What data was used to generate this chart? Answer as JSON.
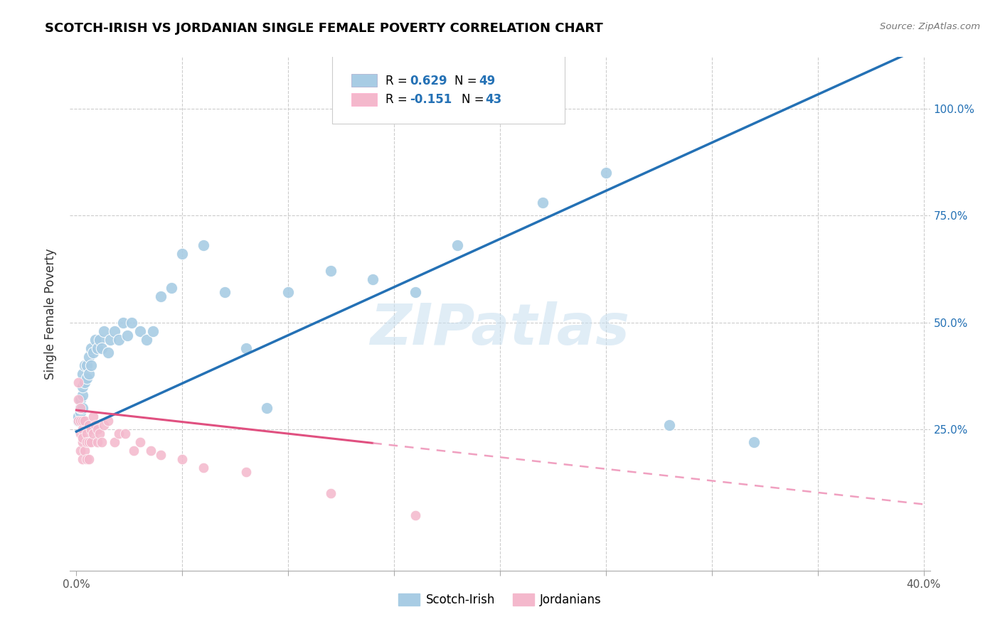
{
  "title": "SCOTCH-IRISH VS JORDANIAN SINGLE FEMALE POVERTY CORRELATION CHART",
  "source": "Source: ZipAtlas.com",
  "ylabel": "Single Female Poverty",
  "legend_scotch_irish": "Scotch-Irish",
  "legend_jordanians": "Jordanians",
  "R_scotch": 0.629,
  "N_scotch": 49,
  "R_jordan": -0.151,
  "N_jordan": 43,
  "scotch_color": "#a8cce4",
  "jordan_color": "#f4b8cc",
  "scotch_line_color": "#2471b5",
  "jordan_line_color": "#e05080",
  "jordan_dashed_color": "#f0a0c0",
  "watermark": "ZIPatlas",
  "scotch_x": [
    0.001,
    0.001,
    0.002,
    0.002,
    0.002,
    0.003,
    0.003,
    0.003,
    0.003,
    0.004,
    0.004,
    0.005,
    0.005,
    0.006,
    0.006,
    0.007,
    0.007,
    0.008,
    0.009,
    0.01,
    0.011,
    0.012,
    0.013,
    0.015,
    0.016,
    0.018,
    0.02,
    0.022,
    0.024,
    0.026,
    0.03,
    0.033,
    0.036,
    0.04,
    0.045,
    0.05,
    0.06,
    0.07,
    0.08,
    0.09,
    0.1,
    0.12,
    0.14,
    0.16,
    0.18,
    0.22,
    0.25,
    0.28,
    0.32
  ],
  "scotch_y": [
    0.27,
    0.28,
    0.29,
    0.3,
    0.32,
    0.3,
    0.33,
    0.35,
    0.38,
    0.36,
    0.4,
    0.37,
    0.4,
    0.38,
    0.42,
    0.4,
    0.44,
    0.43,
    0.46,
    0.44,
    0.46,
    0.44,
    0.48,
    0.43,
    0.46,
    0.48,
    0.46,
    0.5,
    0.47,
    0.5,
    0.48,
    0.46,
    0.48,
    0.56,
    0.58,
    0.66,
    0.68,
    0.57,
    0.44,
    0.3,
    0.57,
    0.62,
    0.6,
    0.57,
    0.68,
    0.78,
    0.85,
    0.26,
    0.22
  ],
  "jordan_x": [
    0.001,
    0.001,
    0.001,
    0.002,
    0.002,
    0.002,
    0.002,
    0.003,
    0.003,
    0.003,
    0.003,
    0.003,
    0.004,
    0.004,
    0.005,
    0.005,
    0.005,
    0.006,
    0.006,
    0.006,
    0.007,
    0.007,
    0.008,
    0.008,
    0.009,
    0.01,
    0.01,
    0.011,
    0.012,
    0.013,
    0.015,
    0.018,
    0.02,
    0.023,
    0.027,
    0.03,
    0.035,
    0.04,
    0.05,
    0.06,
    0.08,
    0.12,
    0.16
  ],
  "jordan_y": [
    0.36,
    0.32,
    0.27,
    0.3,
    0.27,
    0.24,
    0.2,
    0.25,
    0.22,
    0.18,
    0.23,
    0.27,
    0.2,
    0.27,
    0.24,
    0.22,
    0.18,
    0.26,
    0.22,
    0.18,
    0.25,
    0.22,
    0.28,
    0.24,
    0.26,
    0.25,
    0.22,
    0.24,
    0.22,
    0.26,
    0.27,
    0.22,
    0.24,
    0.24,
    0.2,
    0.22,
    0.2,
    0.19,
    0.18,
    0.16,
    0.15,
    0.1,
    0.05
  ],
  "xlim": [
    0.0,
    0.4
  ],
  "ylim": [
    0.0,
    1.1
  ],
  "background_color": "#ffffff",
  "grid_color": "#cccccc",
  "scotch_line_slope": 2.25,
  "scotch_line_intercept": 0.245,
  "jordan_line_slope": -0.55,
  "jordan_line_intercept": 0.295
}
